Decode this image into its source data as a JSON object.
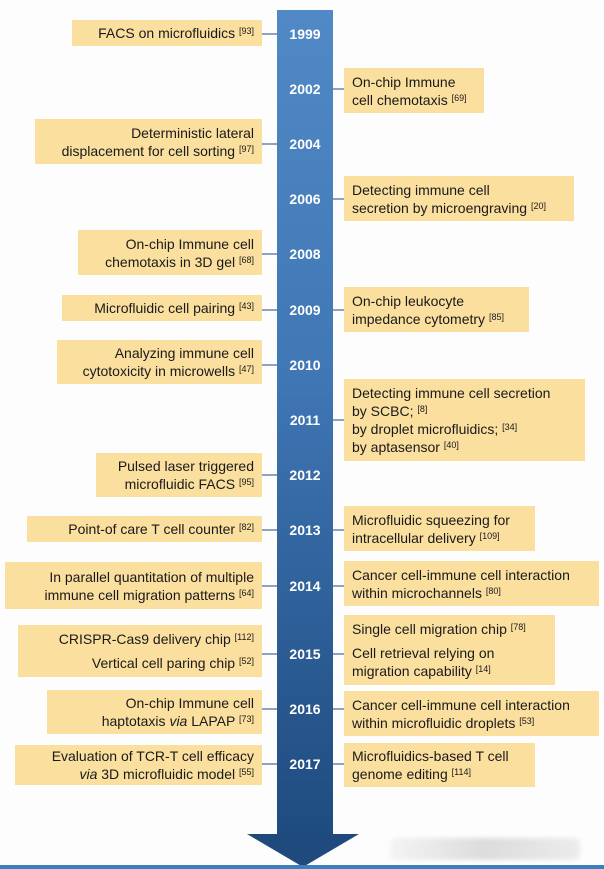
{
  "timeline": [
    {
      "year": "1999",
      "left": [
        {
          "lines": [
            {
              "text": "FACS on microfluidics",
              "ref": "[93]"
            }
          ]
        }
      ]
    },
    {
      "year": "2002",
      "right": [
        {
          "lines": [
            {
              "text": "On-chip Immune"
            },
            {
              "text": "cell chemotaxis",
              "ref": "[69]"
            }
          ]
        }
      ]
    },
    {
      "year": "2004",
      "left": [
        {
          "lines": [
            {
              "text": "Deterministic lateral"
            },
            {
              "text": "displacement for cell sorting",
              "ref": "[97]"
            }
          ]
        }
      ]
    },
    {
      "year": "2006",
      "right": [
        {
          "lines": [
            {
              "text": "Detecting immune cell"
            },
            {
              "text": "secretion by microengraving",
              "ref": "[20]"
            }
          ]
        }
      ]
    },
    {
      "year": "2008",
      "left": [
        {
          "lines": [
            {
              "text": "On-chip Immune cell"
            },
            {
              "text": "chemotaxis in 3D gel",
              "ref": "[68]"
            }
          ]
        }
      ]
    },
    {
      "year": "2009",
      "left": [
        {
          "lines": [
            {
              "text": "Microfluidic cell pairing",
              "ref": "[43]"
            }
          ]
        }
      ],
      "right": [
        {
          "lines": [
            {
              "text": "On-chip leukocyte"
            },
            {
              "text": "impedance cytometry",
              "ref": "[85]"
            }
          ]
        }
      ]
    },
    {
      "year": "2010",
      "left": [
        {
          "lines": [
            {
              "text": "Analyzing immune cell"
            },
            {
              "text": "cytotoxicity in microwells",
              "ref": "[47]"
            }
          ]
        }
      ]
    },
    {
      "year": "2011",
      "right": [
        {
          "lines": [
            {
              "text": "Detecting immune cell secretion"
            },
            {
              "text": "by SCBC;",
              "ref": "[8]"
            },
            {
              "text": "by droplet microfluidics;",
              "ref": "[34]"
            },
            {
              "text": "by aptasensor",
              "ref": "[40]"
            }
          ]
        }
      ]
    },
    {
      "year": "2012",
      "left": [
        {
          "lines": [
            {
              "text": "Pulsed laser triggered"
            },
            {
              "text": "microfluidic FACS",
              "ref": "[95]"
            }
          ]
        }
      ]
    },
    {
      "year": "2013",
      "left": [
        {
          "lines": [
            {
              "text": "Point-of care T cell counter",
              "ref": "[82]"
            }
          ]
        }
      ],
      "right": [
        {
          "lines": [
            {
              "text": "Microfluidic squeezing for"
            },
            {
              "text": "intracellular delivery",
              "ref": "[109]"
            }
          ]
        }
      ]
    },
    {
      "year": "2014",
      "left": [
        {
          "lines": [
            {
              "text": "In parallel quantitation of multiple"
            },
            {
              "text": "immune cell migration patterns",
              "ref": "[64]"
            }
          ]
        }
      ],
      "right": [
        {
          "lines": [
            {
              "text": "Cancer cell-immune cell interaction"
            },
            {
              "text": "within microchannels",
              "ref": "[80]"
            }
          ]
        }
      ]
    },
    {
      "year": "2015",
      "left": [
        {
          "lines": [
            {
              "text": "CRISPR-Cas9 delivery chip",
              "ref": "[112]"
            },
            {
              "gap": true
            },
            {
              "text": "Vertical cell paring chip",
              "ref": "[52]"
            }
          ]
        }
      ],
      "right": [
        {
          "lines": [
            {
              "text": "Single cell migration chip",
              "ref": "[78]"
            },
            {
              "gap": true
            },
            {
              "text": "Cell retrieval relying on"
            },
            {
              "text": "migration capability",
              "ref": "[14]"
            }
          ]
        }
      ]
    },
    {
      "year": "2016",
      "left": [
        {
          "lines": [
            {
              "text": "On-chip Immune cell"
            },
            {
              "text": "haptotaxis ",
              "em": "via",
              "post": " LAPAP",
              "ref": "[73]"
            }
          ]
        }
      ],
      "right": [
        {
          "lines": [
            {
              "text": "Cancer cell-immune cell interaction"
            },
            {
              "text": "within microfluidic droplets",
              "ref": "[53]"
            }
          ]
        }
      ]
    },
    {
      "year": "2017",
      "left": [
        {
          "lines": [
            {
              "text": "Evaluation of TCR-T cell efficacy"
            },
            {
              "text": "",
              "em": "via",
              "post": " 3D microfluidic model",
              "ref": "[55]"
            }
          ]
        }
      ],
      "right": [
        {
          "lines": [
            {
              "text": "Microfluidics-based T cell"
            },
            {
              "text": "genome editing",
              "ref": "[114]"
            }
          ]
        }
      ]
    }
  ],
  "colors": {
    "box": "#fadf9f",
    "shaft_top": "#5189c6",
    "shaft_bottom": "#1f4c80",
    "connector": "#8ea3bd"
  }
}
